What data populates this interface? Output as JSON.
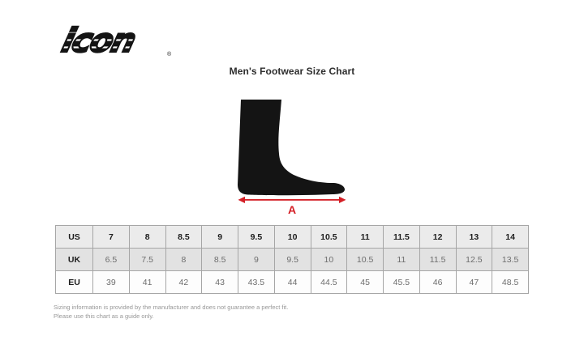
{
  "brand": {
    "logo_text": "icon",
    "registered_mark": "®"
  },
  "page": {
    "title": "Men's Footwear Size Chart"
  },
  "figure": {
    "dimension_label": "A",
    "accent_color": "#d41f26",
    "silhouette_color": "#141414"
  },
  "size_table": {
    "rows": [
      {
        "label": "US",
        "values": [
          "7",
          "8",
          "8.5",
          "9",
          "9.5",
          "10",
          "10.5",
          "11",
          "11.5",
          "12",
          "13",
          "14"
        ]
      },
      {
        "label": "UK",
        "values": [
          "6.5",
          "7.5",
          "8",
          "8.5",
          "9",
          "9.5",
          "10",
          "10.5",
          "11",
          "11.5",
          "12.5",
          "13.5"
        ]
      },
      {
        "label": "EU",
        "values": [
          "39",
          "41",
          "42",
          "43",
          "43.5",
          "44",
          "44.5",
          "45",
          "45.5",
          "46",
          "47",
          "48.5"
        ]
      }
    ]
  },
  "footer": {
    "line1": "Sizing information is provided by the manufacturer and does not guarantee a perfect fit.",
    "line2": "Please use this chart as a guide only."
  }
}
